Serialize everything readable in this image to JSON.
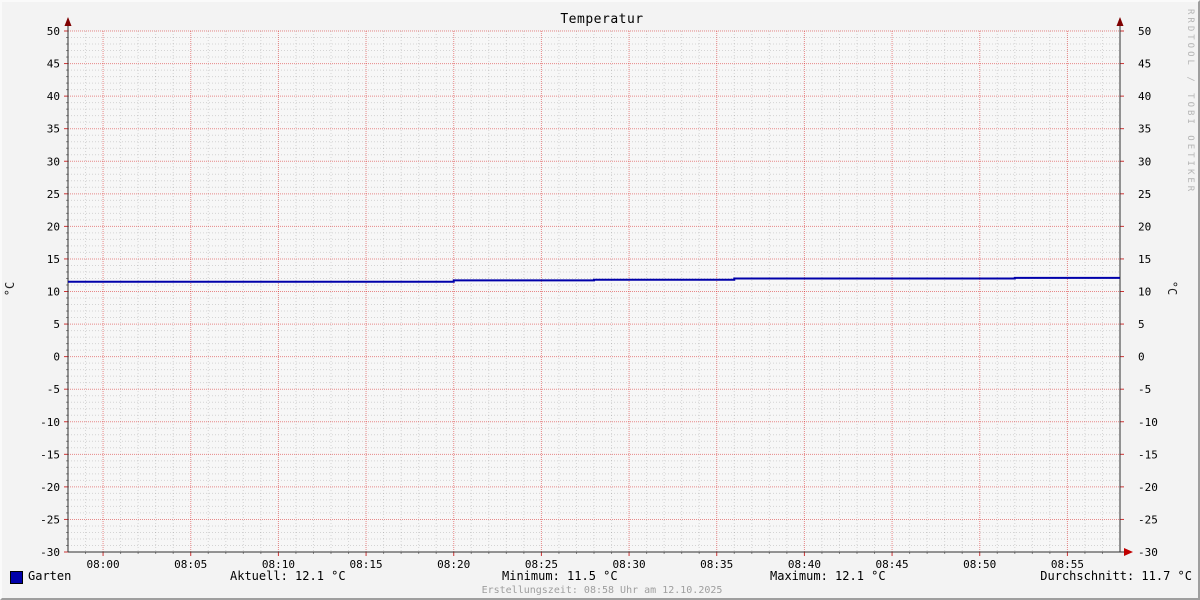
{
  "title": "Temperatur",
  "watermark": "RRDTOOL / TOBI OETIKER",
  "footer": "Erstellungszeit: 08:58 Uhr am 12.10.2025",
  "legend": {
    "series_label": "Garten",
    "stats": [
      {
        "text": "Aktuell: 12.1 °C"
      },
      {
        "text": "Minimum: 11.5 °C"
      },
      {
        "text": "Maximum: 12.1 °C"
      },
      {
        "text": "Durchschnitt: 11.7 °C"
      }
    ]
  },
  "chart_data": {
    "type": "line",
    "title": "Temperatur",
    "ylabel": "°C",
    "ylim": [
      -30,
      50
    ],
    "ytick_step": 5,
    "y_minor_step": 1,
    "grid": true,
    "x_start": "07:58",
    "x_end": "08:58",
    "x_minor_step_minutes": 1,
    "x_ticks": [
      "08:00",
      "08:05",
      "08:10",
      "08:15",
      "08:20",
      "08:25",
      "08:30",
      "08:35",
      "08:40",
      "08:45",
      "08:50",
      "08:55"
    ],
    "series": [
      {
        "name": "Garten",
        "color": "#0000aa",
        "mode": "step-after",
        "points": [
          {
            "t": "07:58",
            "v": 11.5
          },
          {
            "t": "08:20",
            "v": 11.7
          },
          {
            "t": "08:28",
            "v": 11.8
          },
          {
            "t": "08:36",
            "v": 12.0
          },
          {
            "t": "08:52",
            "v": 12.1
          }
        ]
      }
    ],
    "stats": {
      "aktuell": 12.1,
      "minimum": 11.5,
      "maximum": 12.1,
      "durchschnitt": 11.7
    },
    "colors": {
      "major_grid": "rgba(210,0,0,0.45)",
      "minor_grid": "rgba(0,0,0,0.14)",
      "axis": "#2f2f2f",
      "arrow_top": "#7f0000",
      "arrow_right": "#c00000",
      "canvas": "#f7f7f7"
    }
  }
}
